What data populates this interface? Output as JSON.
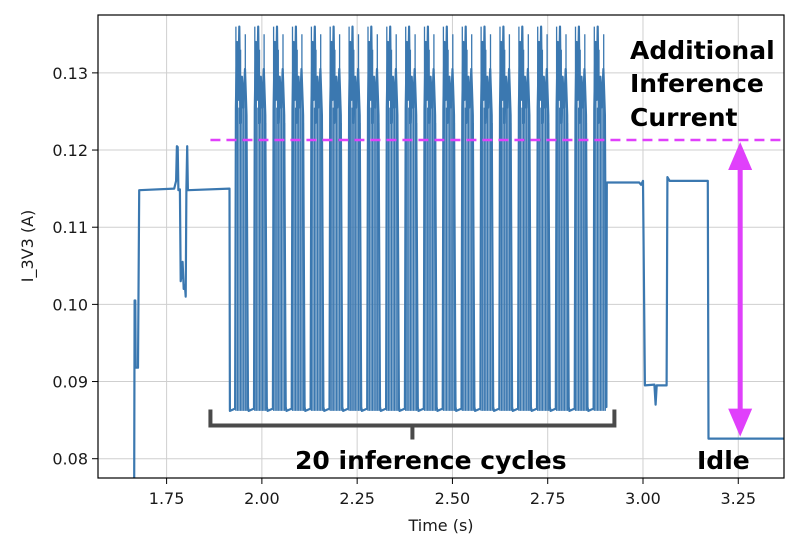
{
  "chart_data": {
    "type": "line",
    "xlabel": "Time (s)",
    "ylabel": "I_3V3 (A)",
    "xlim": [
      1.57,
      3.37
    ],
    "ylim": [
      0.0775,
      0.1375
    ],
    "x_ticks": [
      1.75,
      2.0,
      2.25,
      2.5,
      2.75,
      3.0,
      3.25
    ],
    "x_tick_labels": [
      "1.75",
      "2.00",
      "2.25",
      "2.50",
      "2.75",
      "3.00",
      "3.25"
    ],
    "y_ticks": [
      0.08,
      0.09,
      0.1,
      0.11,
      0.12,
      0.13
    ],
    "y_tick_labels": [
      "0.08",
      "0.09",
      "0.10",
      "0.11",
      "0.12",
      "0.13"
    ],
    "grid": true,
    "series": [
      {
        "color": "#3b78b0",
        "baseline": [
          [
            1.665,
            0.0775
          ],
          [
            1.666,
            0.1005
          ],
          [
            1.668,
            0.1005
          ],
          [
            1.669,
            0.0918
          ],
          [
            1.675,
            0.0918
          ],
          [
            1.678,
            0.1148
          ],
          [
            1.77,
            0.115
          ],
          [
            1.775,
            0.116
          ],
          [
            1.777,
            0.1205
          ],
          [
            1.779,
            0.1204
          ],
          [
            1.781,
            0.1148
          ],
          [
            1.785,
            0.1149
          ],
          [
            1.787,
            0.103
          ],
          [
            1.79,
            0.104
          ],
          [
            1.792,
            0.1055
          ],
          [
            1.795,
            0.102
          ],
          [
            1.798,
            0.1025
          ],
          [
            1.8,
            0.101
          ],
          [
            1.802,
            0.115
          ],
          [
            1.804,
            0.1205
          ],
          [
            1.806,
            0.1148
          ],
          [
            1.915,
            0.115
          ]
        ],
        "burst": {
          "start": 1.915,
          "end": 2.905,
          "cycles": 20,
          "low": 0.0862,
          "high": 0.1295,
          "peak": 0.136
        },
        "tail": [
          [
            2.905,
            0.1158
          ],
          [
            2.99,
            0.1158
          ],
          [
            2.995,
            0.1155
          ],
          [
            3.0,
            0.116
          ],
          [
            3.005,
            0.0895
          ],
          [
            3.03,
            0.0896
          ],
          [
            3.033,
            0.087
          ],
          [
            3.036,
            0.0895
          ],
          [
            3.062,
            0.0895
          ],
          [
            3.064,
            0.1165
          ],
          [
            3.07,
            0.116
          ],
          [
            3.17,
            0.116
          ],
          [
            3.172,
            0.0826
          ],
          [
            3.37,
            0.0826
          ]
        ]
      }
    ],
    "reference_line": {
      "y": 0.1213,
      "x_from": 1.865,
      "x_to": 3.37,
      "color": "#e040fb",
      "style": "dashed"
    },
    "annotations": {
      "extra_current_line1": "Additional",
      "extra_current_line2": "Inference",
      "extra_current_line3": "Current",
      "cycles_label": "20 inference cycles",
      "idle_label": "Idle"
    },
    "bracket": {
      "x_from": 1.865,
      "x_to": 2.925,
      "y": 0.0843,
      "color": "#4a4a4a"
    },
    "double_arrow": {
      "x": 3.255,
      "y_top": 0.1213,
      "y_bottom": 0.0826,
      "color": "#e040fb"
    }
  }
}
